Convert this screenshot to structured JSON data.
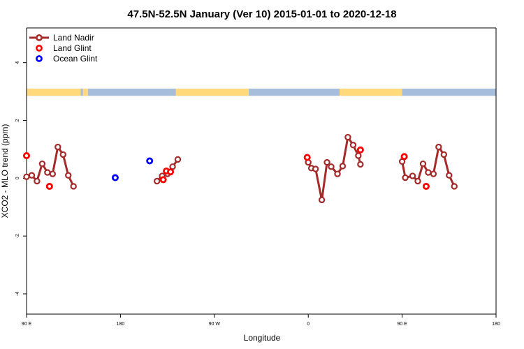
{
  "chart_data": {
    "type": "line",
    "title": "47.5N-52.5N January (Ver 10)   2015-01-01 to 2020-12-18",
    "xlabel": "Longitude",
    "ylabel": "XCO2 - MLO trend (ppm)",
    "xlim": [
      -180,
      180
    ],
    "ylim": [
      -4.7,
      5.2
    ],
    "x_ticks": [
      {
        "value": -180,
        "label": "90 E"
      },
      {
        "value": -90,
        "label": "180"
      },
      {
        "value": 0,
        "label": "90 W"
      },
      {
        "value": 90,
        "label": "0"
      },
      {
        "value": 180,
        "label": "90 E"
      },
      {
        "value": 270,
        "label": "180"
      }
    ],
    "y_ticks": [
      {
        "value": -4,
        "label": "-4"
      },
      {
        "value": -2,
        "label": "-2"
      },
      {
        "value": 0,
        "label": "0"
      },
      {
        "value": 2,
        "label": "2"
      },
      {
        "value": 4,
        "label": "4"
      }
    ],
    "legend_position": "top-left",
    "surface_strip": {
      "y_range": [
        2.85,
        3.1
      ],
      "land_color": "#FFD97A",
      "ocean_color": "#A6BDDB",
      "land_segments": [
        [
          -180,
          -128
        ],
        [
          -126,
          -121
        ],
        [
          -37,
          33
        ],
        [
          120,
          180
        ]
      ]
    },
    "series": [
      {
        "name": "Land Nadir",
        "color": "#A52A2A",
        "connected": true,
        "segments": [
          [
            {
              "x": -180,
              "y": 0.05
            },
            {
              "x": -175,
              "y": 0.1
            },
            {
              "x": -170,
              "y": -0.1
            },
            {
              "x": -165,
              "y": 0.5
            },
            {
              "x": -160,
              "y": 0.2
            },
            {
              "x": -155,
              "y": 0.15
            },
            {
              "x": -150,
              "y": 1.08
            },
            {
              "x": -145,
              "y": 0.82
            },
            {
              "x": -140,
              "y": 0.1
            },
            {
              "x": -135,
              "y": -0.28
            }
          ],
          [
            {
              "x": -55,
              "y": -0.1
            },
            {
              "x": -50,
              "y": 0.08
            },
            {
              "x": -45,
              "y": 0.15
            },
            {
              "x": -40,
              "y": 0.4
            },
            {
              "x": -35,
              "y": 0.65
            }
          ],
          [
            {
              "x": 90,
              "y": 0.55
            },
            {
              "x": 93,
              "y": 0.35
            },
            {
              "x": 97,
              "y": 0.32
            },
            {
              "x": 103,
              "y": -0.75
            },
            {
              "x": 108,
              "y": 0.55
            },
            {
              "x": 112,
              "y": 0.4
            },
            {
              "x": 118,
              "y": 0.15
            },
            {
              "x": 123,
              "y": 0.42
            },
            {
              "x": 128,
              "y": 1.42
            },
            {
              "x": 133,
              "y": 1.15
            },
            {
              "x": 138,
              "y": 0.78
            },
            {
              "x": 140,
              "y": 0.48
            }
          ],
          [
            {
              "x": 180,
              "y": 0.58
            },
            {
              "x": 183,
              "y": 0.02
            },
            {
              "x": 190,
              "y": 0.08
            },
            {
              "x": 195,
              "y": -0.1
            },
            {
              "x": 200,
              "y": 0.5
            },
            {
              "x": 205,
              "y": 0.2
            },
            {
              "x": 210,
              "y": 0.15
            },
            {
              "x": 215,
              "y": 1.08
            },
            {
              "x": 220,
              "y": 0.82
            },
            {
              "x": 225,
              "y": 0.1
            },
            {
              "x": 230,
              "y": -0.28
            }
          ]
        ]
      },
      {
        "name": "Land Glint",
        "color": "#FF0000",
        "connected": false,
        "points": [
          {
            "x": -180,
            "y": 0.78
          },
          {
            "x": -158,
            "y": -0.28
          },
          {
            "x": -49,
            "y": -0.05
          },
          {
            "x": -46,
            "y": 0.25
          },
          {
            "x": -42,
            "y": 0.22
          },
          {
            "x": 89,
            "y": 0.72
          },
          {
            "x": 140,
            "y": 0.98
          },
          {
            "x": 182,
            "y": 0.75
          },
          {
            "x": 203,
            "y": -0.28
          }
        ]
      },
      {
        "name": "Ocean Glint",
        "color": "#0000FF",
        "connected": false,
        "points": [
          {
            "x": -95,
            "y": 0.02
          },
          {
            "x": -62,
            "y": 0.6
          }
        ]
      }
    ]
  }
}
